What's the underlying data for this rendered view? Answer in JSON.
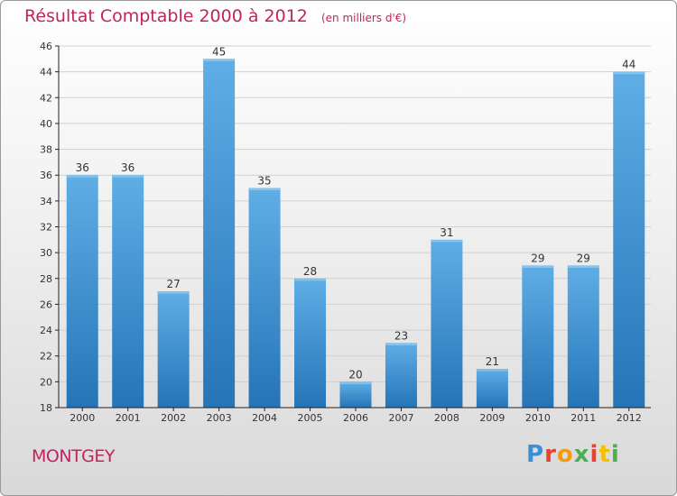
{
  "header": {
    "title": "Résultat Comptable 2000 à 2012",
    "subtitle": "(en milliers d'€)"
  },
  "footer": {
    "commune": "MONTGEY",
    "brand": "Proxiti",
    "brand_colors": [
      "#3b8fd6",
      "#e8432e",
      "#f39c12",
      "#4caf50",
      "#e8432e",
      "#f2c200",
      "#4caf50"
    ]
  },
  "colors": {
    "title": "#c0245e",
    "bar_top": "#5faee6",
    "bar_bottom": "#2574b7",
    "grid": "#d0d0d0",
    "axis": "#222222"
  },
  "chart_data": {
    "type": "bar",
    "categories": [
      "2000",
      "2001",
      "2002",
      "2003",
      "2004",
      "2005",
      "2006",
      "2007",
      "2008",
      "2009",
      "2010",
      "2011",
      "2012"
    ],
    "values": [
      36,
      36,
      27,
      45,
      35,
      28,
      20,
      23,
      31,
      21,
      29,
      29,
      44
    ],
    "ylim": [
      18,
      46
    ],
    "yticks": [
      18,
      20,
      22,
      24,
      26,
      28,
      30,
      32,
      34,
      36,
      38,
      40,
      42,
      44,
      46
    ],
    "grid": true
  }
}
